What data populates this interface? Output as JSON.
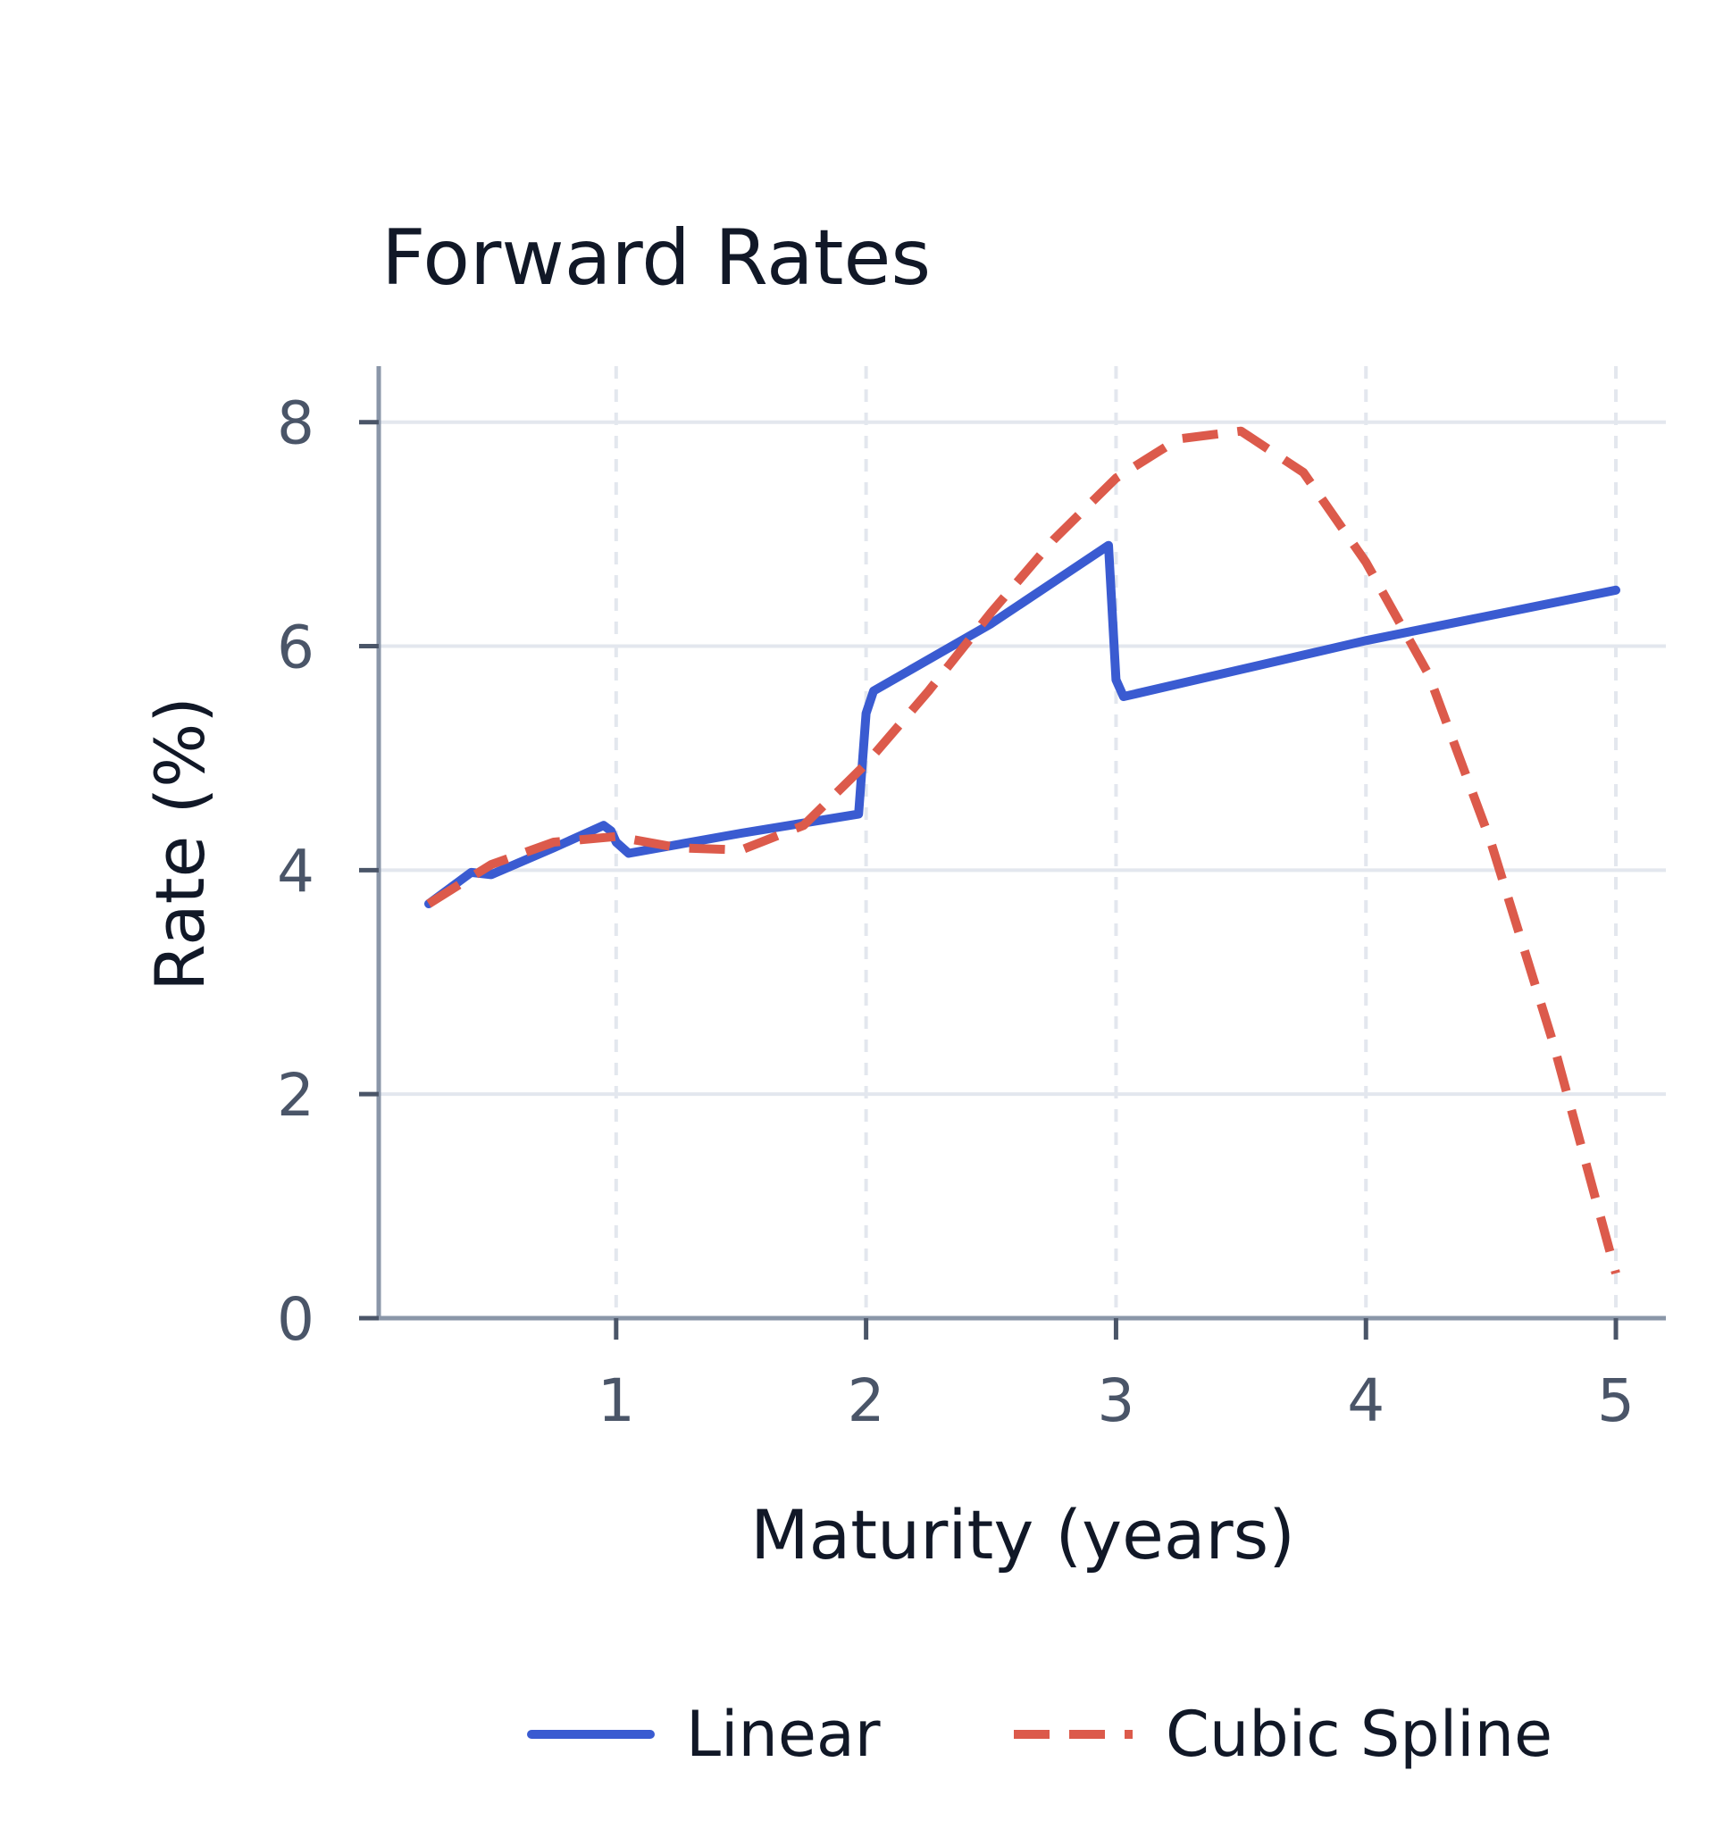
{
  "chart_data": {
    "type": "line",
    "title": "Forward Rates",
    "xlabel": "Maturity (years)",
    "ylabel": "Rate (%)",
    "xlim": [
      0.05,
      5.2
    ],
    "ylim": [
      0,
      8.5
    ],
    "xticks": [
      1,
      2,
      3,
      4,
      5
    ],
    "xtick_labels": [
      "1",
      "2",
      "3",
      "4",
      "5"
    ],
    "yticks": [
      0,
      2,
      4,
      6,
      8
    ],
    "ytick_labels": [
      "0",
      "2",
      "4",
      "6",
      "8"
    ],
    "grid": {
      "x": "dashed",
      "y": "solid"
    },
    "legend": "bottom",
    "series": [
      {
        "name": "Linear",
        "style": "solid",
        "color": "#3a5bd1",
        "x": [
          0.25,
          0.42,
          0.5,
          0.75,
          0.95,
          0.98,
          1.0,
          1.05,
          1.5,
          1.97,
          2.0,
          2.03,
          2.5,
          2.97,
          3.0,
          3.03,
          4.0,
          5.0
        ],
        "y": [
          3.7,
          3.98,
          3.96,
          4.2,
          4.4,
          4.35,
          4.25,
          4.15,
          4.33,
          4.5,
          5.4,
          5.6,
          6.2,
          6.9,
          5.7,
          5.55,
          6.05,
          6.5
        ]
      },
      {
        "name": "Cubic Spline",
        "style": "dashed",
        "color": "#dc5a4b",
        "x": [
          0.25,
          0.5,
          0.75,
          1.0,
          1.25,
          1.5,
          1.75,
          2.0,
          2.25,
          2.5,
          2.75,
          3.0,
          3.25,
          3.5,
          3.75,
          4.0,
          4.25,
          4.5,
          4.75,
          5.0
        ],
        "y": [
          3.7,
          4.05,
          4.25,
          4.3,
          4.2,
          4.18,
          4.4,
          4.95,
          5.6,
          6.3,
          6.95,
          7.5,
          7.85,
          7.92,
          7.55,
          6.75,
          5.75,
          4.25,
          2.45,
          0.4
        ]
      }
    ]
  }
}
